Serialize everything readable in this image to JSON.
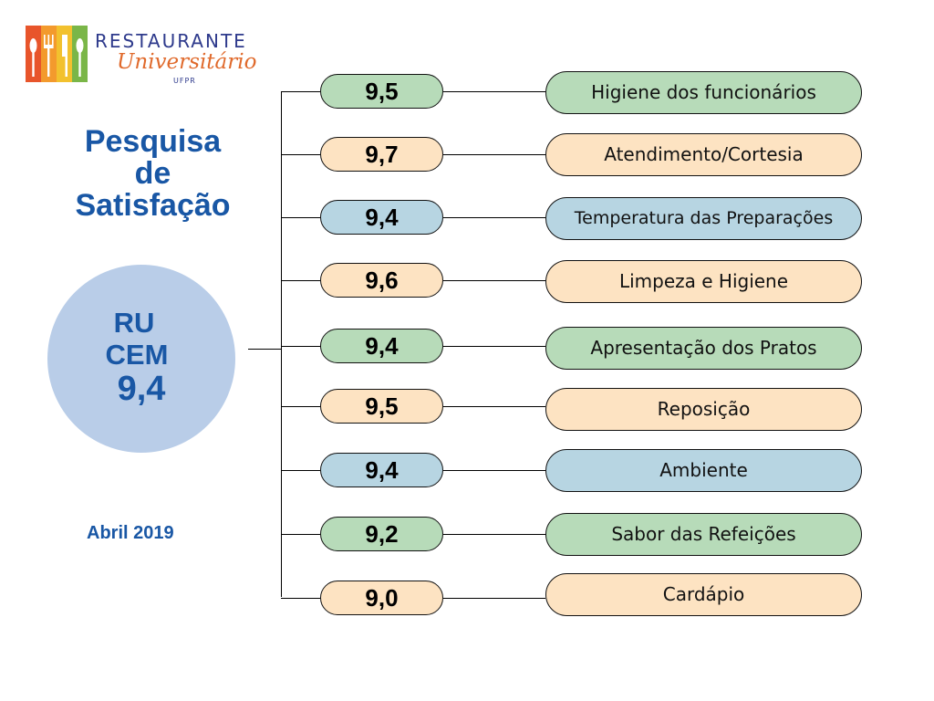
{
  "logo": {
    "line1": "RESTAURANTE",
    "line2": "Universitário",
    "line3": "UFPR",
    "bar_colors": [
      "#e8552b",
      "#f39a2d",
      "#f2c12e",
      "#7ab648"
    ]
  },
  "title": {
    "line1": "Pesquisa",
    "line2": "de",
    "line3": "Satisfação"
  },
  "summary": {
    "line1": "RU",
    "line2": "CEM",
    "score": "9,4"
  },
  "date": "Abril 2019",
  "colors": {
    "green": "#b7dbb9",
    "orange": "#fde3c2",
    "blue": "#b7d5e2",
    "title_blue": "#1957a5",
    "circle": "#b9cde8"
  },
  "items": [
    {
      "score": "9,5",
      "label": "Higiene dos funcionários",
      "color": "green"
    },
    {
      "score": "9,7",
      "label": "Atendimento/Cortesia",
      "color": "orange"
    },
    {
      "score": "9,4",
      "label": "Temperatura das Preparações",
      "color": "blue"
    },
    {
      "score": "9,6",
      "label": "Limpeza e Higiene",
      "color": "orange"
    },
    {
      "score": "9,4",
      "label": "Apresentação dos Pratos",
      "color": "green"
    },
    {
      "score": "9,5",
      "label": "Reposição",
      "color": "orange"
    },
    {
      "score": "9,4",
      "label": "Ambiente",
      "color": "blue"
    },
    {
      "score": "9,2",
      "label": "Sabor das Refeições",
      "color": "green"
    },
    {
      "score": "9,0",
      "label": "Cardápio",
      "color": "orange"
    }
  ]
}
